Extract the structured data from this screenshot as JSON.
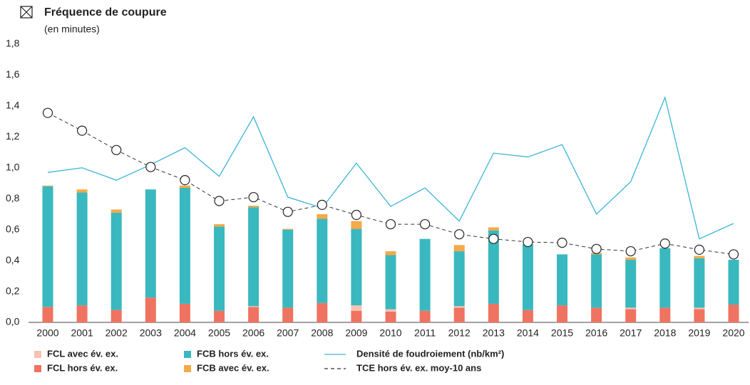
{
  "chart_data": {
    "type": "bar",
    "stacked": true,
    "title": "Fréquence de coupure",
    "subtitle": "(en minutes)",
    "categories": [
      "2000",
      "2001",
      "2002",
      "2003",
      "2004",
      "2005",
      "2006",
      "2007",
      "2008",
      "2009",
      "2010",
      "2011",
      "2012",
      "2013",
      "2014",
      "2015",
      "2016",
      "2017",
      "2018",
      "2019",
      "2020"
    ],
    "ylim": [
      0,
      1.8
    ],
    "yticks": [
      {
        "value": 0,
        "label": "0,0"
      },
      {
        "value": 0.2,
        "label": "0,2"
      },
      {
        "value": 0.4,
        "label": "0,4"
      },
      {
        "value": 0.6,
        "label": "0,6"
      },
      {
        "value": 0.8,
        "label": "0,8"
      },
      {
        "value": 1.0,
        "label": "1,0"
      },
      {
        "value": 1.2,
        "label": "1,2"
      },
      {
        "value": 1.4,
        "label": "1,4"
      },
      {
        "value": 1.6,
        "label": "1,6"
      },
      {
        "value": 1.8,
        "label": "1,8"
      }
    ],
    "grid": false,
    "series": [
      {
        "name": "FCL hors év. ex.",
        "type": "bar",
        "color": "#ef7360",
        "values": [
          0.1,
          0.11,
          0.08,
          0.16,
          0.12,
          0.075,
          0.1,
          0.095,
          0.125,
          0.075,
          0.07,
          0.075,
          0.095,
          0.12,
          0.08,
          0.11,
          0.095,
          0.085,
          0.095,
          0.085,
          0.115
        ]
      },
      {
        "name": "FCL avec év. ex.",
        "type": "bar",
        "color": "#f6c2b3",
        "values": [
          0,
          0,
          0,
          0,
          0,
          0,
          0.005,
          0,
          0,
          0.035,
          0.015,
          0,
          0.01,
          0,
          0,
          0,
          0,
          0.01,
          0,
          0.01,
          0
        ]
      },
      {
        "name": "FCB hors év. ex.",
        "type": "bar",
        "color": "#3ab8bf",
        "values": [
          0.78,
          0.73,
          0.63,
          0.7,
          0.75,
          0.545,
          0.64,
          0.505,
          0.545,
          0.495,
          0.35,
          0.465,
          0.355,
          0.475,
          0.425,
          0.33,
          0.345,
          0.31,
          0.385,
          0.32,
          0.29
        ]
      },
      {
        "name": "FCB avec év. ex.",
        "type": "bar",
        "color": "#f5a947",
        "values": [
          0.005,
          0.02,
          0.02,
          0,
          0.015,
          0.015,
          0.01,
          0.005,
          0.03,
          0.05,
          0.025,
          0,
          0.04,
          0.02,
          0,
          0,
          0.01,
          0.015,
          0,
          0.015,
          0
        ]
      },
      {
        "name": "Densité de foudroiement (nb/km²)",
        "type": "line",
        "color": "#3bb4d8",
        "dashed": false,
        "markers": false,
        "values": [
          0.97,
          1.0,
          0.92,
          1.02,
          1.13,
          0.945,
          1.33,
          0.81,
          0.74,
          1.03,
          0.75,
          0.87,
          0.655,
          1.095,
          1.07,
          1.15,
          0.7,
          0.91,
          1.455,
          0.54,
          0.64
        ]
      },
      {
        "name": "TCE hors év. ex. moy-10 ans",
        "type": "line",
        "color": "#333333",
        "dashed": true,
        "markers": true,
        "values": [
          1.355,
          1.24,
          1.115,
          1.005,
          0.92,
          0.785,
          0.81,
          0.715,
          0.76,
          0.695,
          0.635,
          0.635,
          0.57,
          0.54,
          0.52,
          0.515,
          0.475,
          0.46,
          0.51,
          0.47,
          0.44
        ]
      }
    ]
  }
}
